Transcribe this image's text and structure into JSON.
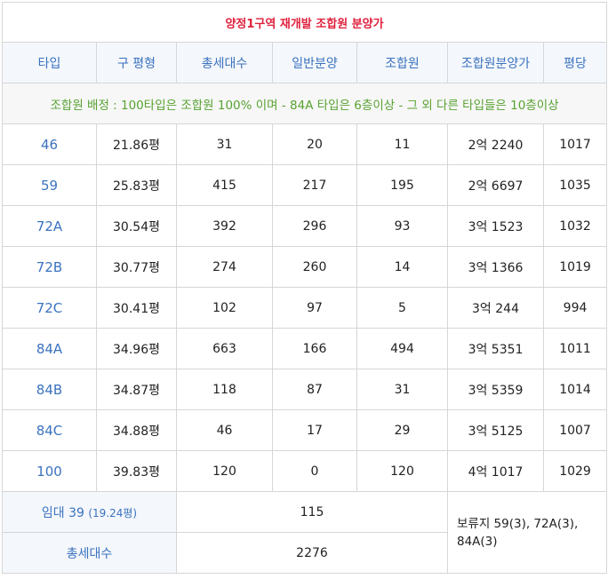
{
  "title": "양정1구역 재개발  조합원 분양가",
  "headers": [
    "타입",
    "구 평형",
    "총세대수",
    "일반분양",
    "조합원",
    "조합원분양가",
    "평당"
  ],
  "note": "조합원 배정 : 100타입은 조합원 100% 이며 - 84A 타입은 6층이상 - 그 외 다른 타입들은 10층이상",
  "rows": [
    {
      "type": "46",
      "pyeong": "21.86평",
      "total": "31",
      "general": "20",
      "member": "11",
      "price": "2억 2240",
      "per": "1017"
    },
    {
      "type": "59",
      "pyeong": "25.83평",
      "total": "415",
      "general": "217",
      "member": "195",
      "price": "2억 6697",
      "per": "1035"
    },
    {
      "type": "72A",
      "pyeong": "30.54평",
      "total": "392",
      "general": "296",
      "member": "93",
      "price": "3억 1523",
      "per": "1032"
    },
    {
      "type": "72B",
      "pyeong": "30.77평",
      "total": "274",
      "general": "260",
      "member": "14",
      "price": "3억 1366",
      "per": "1019"
    },
    {
      "type": "72C",
      "pyeong": "30.41평",
      "total": "102",
      "general": "97",
      "member": "5",
      "price": "3억 244",
      "per": "994"
    },
    {
      "type": "84A",
      "pyeong": "34.96평",
      "total": "663",
      "general": "166",
      "member": "494",
      "price": "3억 5351",
      "per": "1011"
    },
    {
      "type": "84B",
      "pyeong": "34.87평",
      "total": "118",
      "general": "87",
      "member": "31",
      "price": "3억 5359",
      "per": "1014"
    },
    {
      "type": "84C",
      "pyeong": "34.88평",
      "total": "46",
      "general": "17",
      "member": "29",
      "price": "3억 5125",
      "per": "1007"
    },
    {
      "type": "100",
      "pyeong": "39.83평",
      "total": "120",
      "general": "0",
      "member": "120",
      "price": "4억 1017",
      "per": "1029"
    }
  ],
  "rental": {
    "label": "임대 39",
    "sub": "(19.24평)",
    "value": "115"
  },
  "total": {
    "label": "총세대수",
    "value": "2276"
  },
  "reserve": "보류지 59(3), 72A(3), 84A(3)"
}
